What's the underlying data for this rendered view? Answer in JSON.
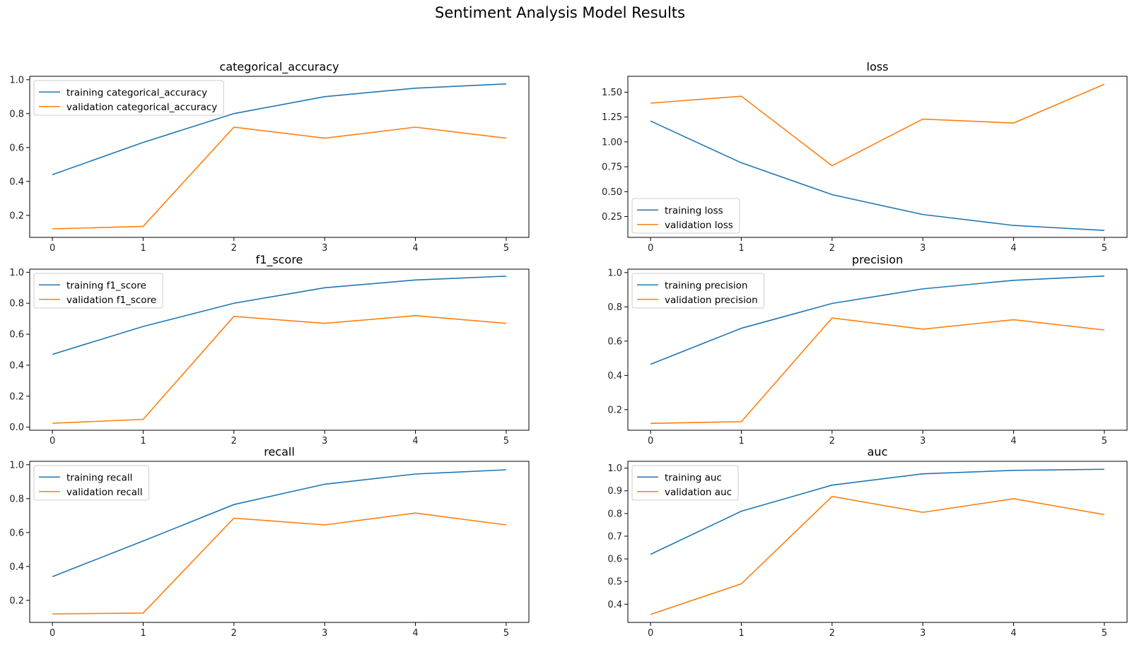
{
  "title": "Sentiment Analysis Model Results",
  "colors": {
    "training": "#1f77b4",
    "validation": "#ff7f0e"
  },
  "chart_data": [
    {
      "type": "line",
      "title": "categorical_accuracy",
      "x": [
        0,
        1,
        2,
        3,
        4,
        5
      ],
      "ylim": [
        0.07,
        1.02
      ],
      "yticks": [
        0.2,
        0.4,
        0.6,
        0.8,
        1.0
      ],
      "ytick_labels": [
        "0.2",
        "0.4",
        "0.6",
        "0.8",
        "1.0"
      ],
      "legend_position": "upper-left",
      "series": [
        {
          "name": "training categorical_accuracy",
          "values": [
            0.44,
            0.63,
            0.8,
            0.9,
            0.95,
            0.975
          ]
        },
        {
          "name": "validation categorical_accuracy",
          "values": [
            0.12,
            0.135,
            0.72,
            0.655,
            0.72,
            0.655
          ]
        }
      ]
    },
    {
      "type": "line",
      "title": "loss",
      "x": [
        0,
        1,
        2,
        3,
        4,
        5
      ],
      "ylim": [
        0.04,
        1.66
      ],
      "yticks": [
        0.25,
        0.5,
        0.75,
        1.0,
        1.25,
        1.5
      ],
      "ytick_labels": [
        "0.25",
        "0.50",
        "0.75",
        "1.00",
        "1.25",
        "1.50"
      ],
      "legend_position": "lower-left",
      "series": [
        {
          "name": "training loss",
          "values": [
            1.21,
            0.79,
            0.47,
            0.27,
            0.16,
            0.11
          ]
        },
        {
          "name": "validation loss",
          "values": [
            1.39,
            1.46,
            0.76,
            1.23,
            1.19,
            1.58
          ]
        }
      ]
    },
    {
      "type": "line",
      "title": "f1_score",
      "x": [
        0,
        1,
        2,
        3,
        4,
        5
      ],
      "ylim": [
        -0.02,
        1.02
      ],
      "yticks": [
        0.0,
        0.2,
        0.4,
        0.6,
        0.8,
        1.0
      ],
      "ytick_labels": [
        "0.0",
        "0.2",
        "0.4",
        "0.6",
        "0.8",
        "1.0"
      ],
      "legend_position": "upper-left",
      "series": [
        {
          "name": "training f1_score",
          "values": [
            0.47,
            0.65,
            0.8,
            0.9,
            0.95,
            0.975
          ]
        },
        {
          "name": "validation f1_score",
          "values": [
            0.025,
            0.05,
            0.715,
            0.67,
            0.72,
            0.67
          ]
        }
      ]
    },
    {
      "type": "line",
      "title": "precision",
      "x": [
        0,
        1,
        2,
        3,
        4,
        5
      ],
      "ylim": [
        0.08,
        1.02
      ],
      "yticks": [
        0.2,
        0.4,
        0.6,
        0.8,
        1.0
      ],
      "ytick_labels": [
        "0.2",
        "0.4",
        "0.6",
        "0.8",
        "1.0"
      ],
      "legend_position": "upper-left",
      "series": [
        {
          "name": "training precision",
          "values": [
            0.465,
            0.675,
            0.82,
            0.905,
            0.955,
            0.98
          ]
        },
        {
          "name": "validation precision",
          "values": [
            0.12,
            0.13,
            0.735,
            0.67,
            0.725,
            0.665
          ]
        }
      ]
    },
    {
      "type": "line",
      "title": "recall",
      "x": [
        0,
        1,
        2,
        3,
        4,
        5
      ],
      "ylim": [
        0.07,
        1.02
      ],
      "yticks": [
        0.2,
        0.4,
        0.6,
        0.8,
        1.0
      ],
      "ytick_labels": [
        "0.2",
        "0.4",
        "0.6",
        "0.8",
        "1.0"
      ],
      "legend_position": "upper-left",
      "series": [
        {
          "name": "training recall",
          "values": [
            0.34,
            0.55,
            0.765,
            0.885,
            0.945,
            0.97
          ]
        },
        {
          "name": "validation recall",
          "values": [
            0.12,
            0.125,
            0.685,
            0.645,
            0.715,
            0.645
          ]
        }
      ]
    },
    {
      "type": "line",
      "title": "auc",
      "x": [
        0,
        1,
        2,
        3,
        4,
        5
      ],
      "ylim": [
        0.32,
        1.03
      ],
      "yticks": [
        0.4,
        0.5,
        0.6,
        0.7,
        0.8,
        0.9,
        1.0
      ],
      "ytick_labels": [
        "0.4",
        "0.5",
        "0.6",
        "0.7",
        "0.8",
        "0.9",
        "1.0"
      ],
      "legend_position": "upper-left",
      "series": [
        {
          "name": "training auc",
          "values": [
            0.62,
            0.81,
            0.925,
            0.975,
            0.99,
            0.995
          ]
        },
        {
          "name": "validation auc",
          "values": [
            0.355,
            0.49,
            0.875,
            0.805,
            0.865,
            0.795
          ]
        }
      ]
    }
  ]
}
